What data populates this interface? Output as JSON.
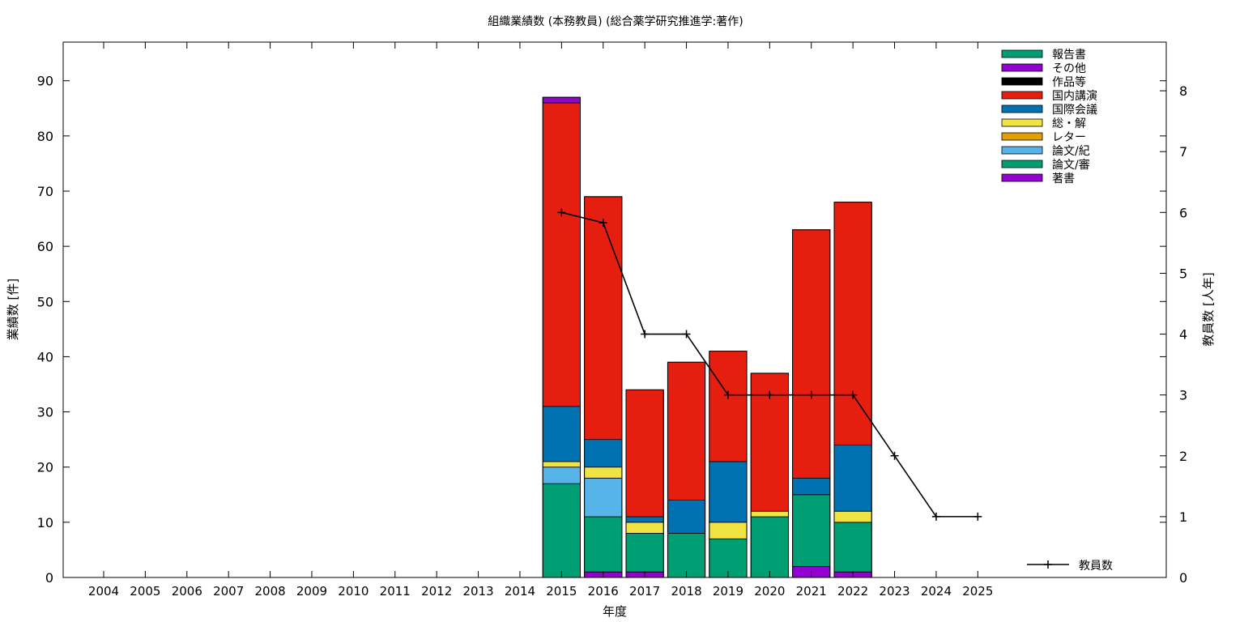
{
  "chart_data": {
    "type": "bar",
    "stacked": true,
    "title": "組織業績数 (本務教員) (総合薬学研究推進学:著作)",
    "xlabel": "年度",
    "ylabel": "業績数 [件]",
    "y2label": "教員数 [人年]",
    "categories": [
      "2004",
      "2005",
      "2006",
      "2007",
      "2008",
      "2009",
      "2010",
      "2011",
      "2012",
      "2013",
      "2014",
      "2015",
      "2016",
      "2017",
      "2018",
      "2019",
      "2020",
      "2021",
      "2022",
      "2023",
      "2024",
      "2025"
    ],
    "ylim": [
      0,
      97
    ],
    "yticks": [
      0,
      10,
      20,
      30,
      40,
      50,
      60,
      70,
      80,
      90
    ],
    "y2lim": [
      0,
      8.8
    ],
    "y2ticks": [
      0,
      1,
      2,
      3,
      4,
      5,
      6,
      7,
      8
    ],
    "grid": false,
    "legend_position": "top-right",
    "series": [
      {
        "name": "著書",
        "color": "#9400d3",
        "values": [
          0,
          0,
          0,
          0,
          0,
          0,
          0,
          0,
          0,
          0,
          0,
          0,
          1,
          1,
          0,
          0,
          0,
          2,
          1,
          0,
          0,
          0
        ]
      },
      {
        "name": "論文/審",
        "color": "#009e73",
        "values": [
          0,
          0,
          0,
          0,
          0,
          0,
          0,
          0,
          0,
          0,
          0,
          17,
          10,
          7,
          8,
          7,
          11,
          13,
          9,
          0,
          0,
          0
        ]
      },
      {
        "name": "論文/紀",
        "color": "#56b4e9",
        "values": [
          0,
          0,
          0,
          0,
          0,
          0,
          0,
          0,
          0,
          0,
          0,
          3,
          7,
          0,
          0,
          0,
          0,
          0,
          0,
          0,
          0,
          0
        ]
      },
      {
        "name": "レター",
        "color": "#e69f00",
        "values": [
          0,
          0,
          0,
          0,
          0,
          0,
          0,
          0,
          0,
          0,
          0,
          0,
          0,
          0,
          0,
          0,
          0,
          0,
          0,
          0,
          0,
          0
        ]
      },
      {
        "name": "総・解",
        "color": "#f0e442",
        "values": [
          0,
          0,
          0,
          0,
          0,
          0,
          0,
          0,
          0,
          0,
          0,
          1,
          2,
          2,
          0,
          3,
          1,
          0,
          2,
          0,
          0,
          0
        ]
      },
      {
        "name": "国際会議",
        "color": "#0072b2",
        "values": [
          0,
          0,
          0,
          0,
          0,
          0,
          0,
          0,
          0,
          0,
          0,
          10,
          5,
          1,
          6,
          11,
          0,
          3,
          12,
          0,
          0,
          0
        ]
      },
      {
        "name": "国内講演",
        "color": "#e51e10",
        "values": [
          0,
          0,
          0,
          0,
          0,
          0,
          0,
          0,
          0,
          0,
          0,
          55,
          44,
          23,
          25,
          20,
          25,
          45,
          44,
          0,
          0,
          0
        ]
      },
      {
        "name": "作品等",
        "color": "#000000",
        "values": [
          0,
          0,
          0,
          0,
          0,
          0,
          0,
          0,
          0,
          0,
          0,
          0,
          0,
          0,
          0,
          0,
          0,
          0,
          0,
          0,
          0,
          0
        ]
      },
      {
        "name": "その他",
        "color": "#9400d3",
        "values": [
          0,
          0,
          0,
          0,
          0,
          0,
          0,
          0,
          0,
          0,
          0,
          1,
          0,
          0,
          0,
          0,
          0,
          0,
          0,
          0,
          0,
          0
        ]
      },
      {
        "name": "報告書",
        "color": "#009e73",
        "values": [
          0,
          0,
          0,
          0,
          0,
          0,
          0,
          0,
          0,
          0,
          0,
          0,
          0,
          0,
          0,
          0,
          0,
          0,
          0,
          0,
          0,
          0
        ]
      }
    ],
    "legend_order": [
      "報告書",
      "その他",
      "作品等",
      "国内講演",
      "国際会議",
      "総・解",
      "レター",
      "論文/紀",
      "論文/審",
      "著書"
    ],
    "line_series": {
      "name": "教員数",
      "axis": "y2",
      "color": "#000000",
      "x": [
        "2015",
        "2016",
        "2017",
        "2018",
        "2019",
        "2020",
        "2021",
        "2022",
        "2023",
        "2024",
        "2025"
      ],
      "values": [
        6,
        5.83,
        4,
        4,
        3,
        3,
        3,
        3,
        2,
        1,
        1
      ]
    }
  }
}
